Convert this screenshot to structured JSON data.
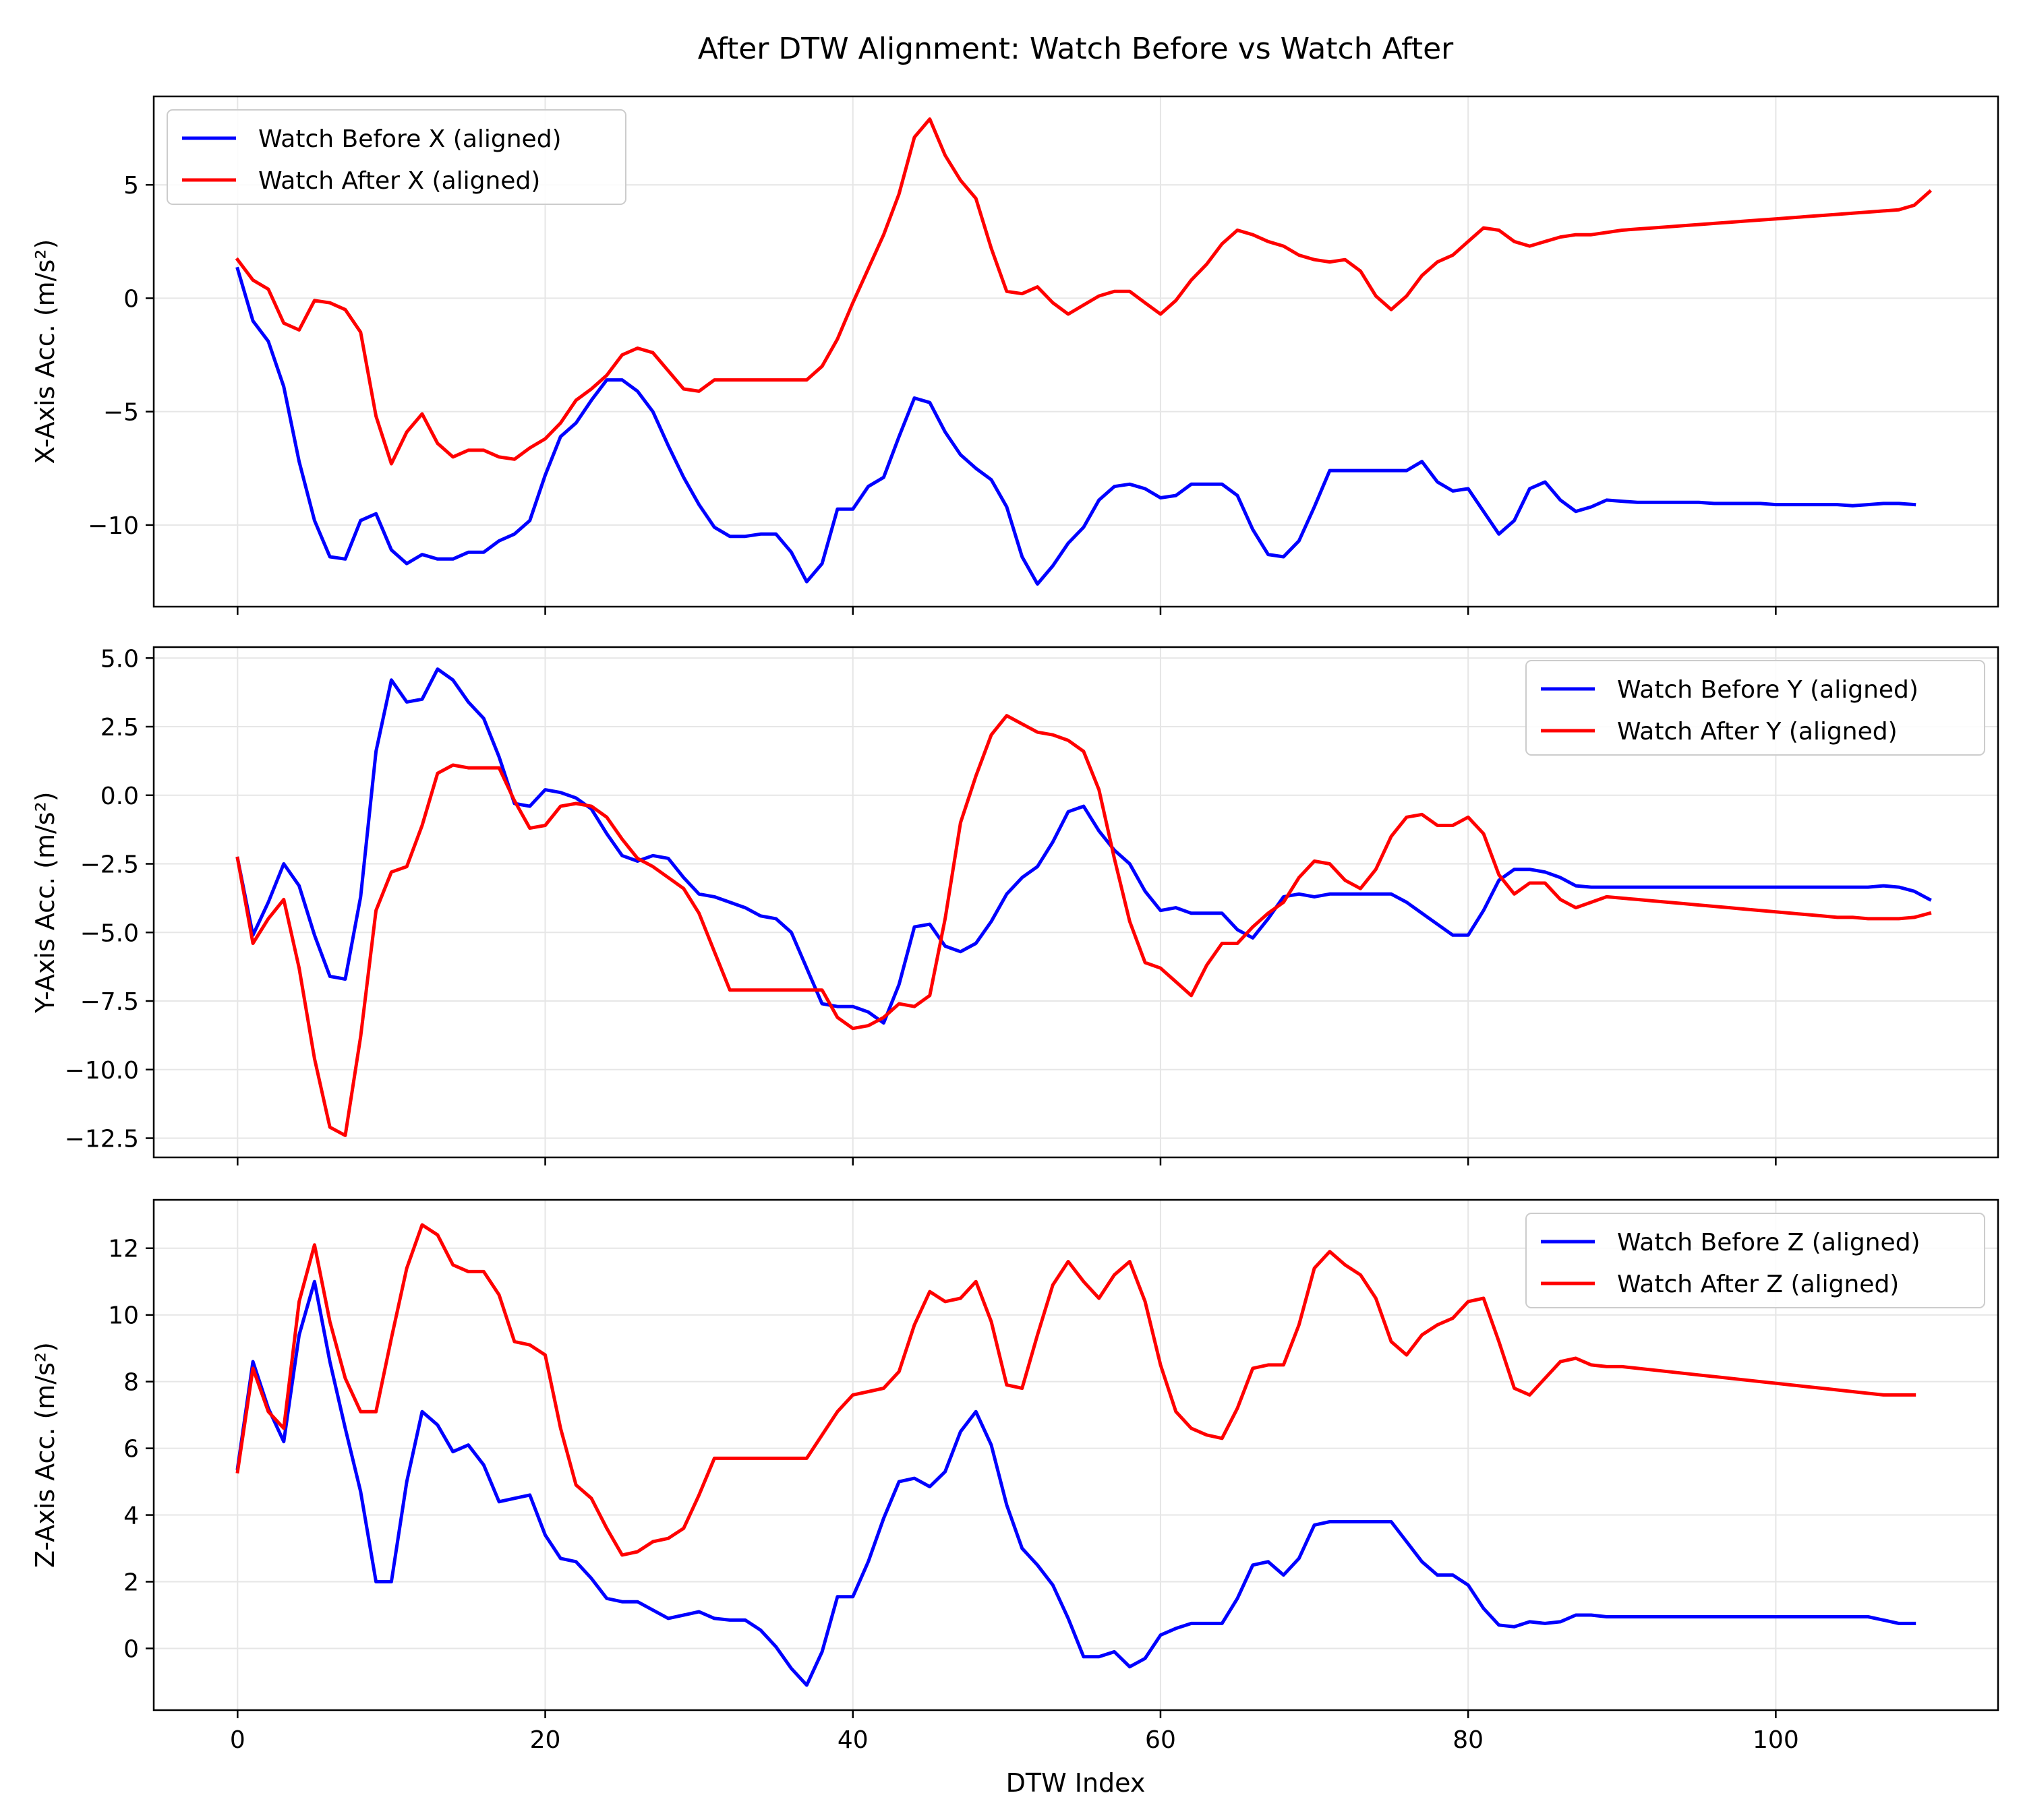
{
  "figure": {
    "title": "After DTW Alignment: Watch Before vs Watch After",
    "xlabel": "DTW Index"
  },
  "chart_data": [
    {
      "type": "line",
      "ylabel": "X-Axis Acc. (m/s²)",
      "ylim": [
        -13.6,
        8.9
      ],
      "yticks": [
        -10,
        -5,
        0,
        5
      ],
      "xlim": [
        -5.45,
        114.45
      ],
      "xticks": [
        0,
        20,
        40,
        60,
        80,
        100
      ],
      "grid": true,
      "legend_position": "upper-left",
      "series": [
        {
          "name": "Watch Before X (aligned)",
          "color": "#0000ff",
          "values": [
            1.3,
            -1.0,
            -1.9,
            -3.9,
            -7.2,
            -9.8,
            -11.4,
            -11.5,
            -9.8,
            -9.5,
            -11.1,
            -11.7,
            -11.3,
            -11.5,
            -11.5,
            -11.2,
            -11.2,
            -10.7,
            -10.4,
            -9.8,
            -7.8,
            -6.1,
            -5.5,
            -4.5,
            -3.6,
            -3.6,
            -4.1,
            -5.0,
            -6.5,
            -7.9,
            -9.1,
            -10.1,
            -10.5,
            -10.5,
            -10.4,
            -10.4,
            -11.2,
            -12.5,
            -11.7,
            -9.3,
            -9.3,
            -8.3,
            -7.9,
            -6.1,
            -4.4,
            -4.6,
            -5.9,
            -6.9,
            -7.5,
            -8.0,
            -9.2,
            -11.4,
            -12.6,
            -11.8,
            -10.8,
            -10.1,
            -8.9,
            -8.3,
            -8.2,
            -8.4,
            -8.8,
            -8.7,
            -8.2,
            -8.2,
            -8.2,
            -8.7,
            -10.2,
            -11.3,
            -11.4,
            -10.7,
            -9.2,
            -7.6,
            -7.6,
            -7.6,
            -7.6,
            -7.6,
            -7.6,
            -7.2,
            -8.1,
            -8.5,
            -8.4,
            -9.4,
            -10.4,
            -9.8,
            -8.4,
            -8.1,
            -8.9,
            -9.4,
            -9.2,
            -8.9,
            -8.95,
            -9.0,
            -9.0,
            -9.0,
            -9.0,
            -9.0,
            -9.05,
            -9.05,
            -9.05,
            -9.05,
            -9.1,
            -9.1,
            -9.1,
            -9.1,
            -9.1,
            -9.15,
            -9.1,
            -9.05,
            -9.05,
            -9.1
          ]
        },
        {
          "name": "Watch After X (aligned)",
          "color": "#ff0000",
          "values": [
            1.7,
            0.8,
            0.4,
            -1.1,
            -1.4,
            -0.1,
            -0.2,
            -0.5,
            -1.5,
            -5.2,
            -7.3,
            -5.9,
            -5.1,
            -6.4,
            -7.0,
            -6.7,
            -6.7,
            -7.0,
            -7.1,
            -6.6,
            -6.2,
            -5.5,
            -4.5,
            -4.0,
            -3.4,
            -2.5,
            -2.2,
            -2.4,
            -3.2,
            -4.0,
            -4.1,
            -3.6,
            -3.6,
            -3.6,
            -3.6,
            -3.6,
            -3.6,
            -3.6,
            -3.0,
            -1.8,
            -0.2,
            1.3,
            2.8,
            4.6,
            7.1,
            7.9,
            6.3,
            5.2,
            4.4,
            2.2,
            0.3,
            0.2,
            0.5,
            -0.2,
            -0.7,
            -0.3,
            0.1,
            0.3,
            0.3,
            -0.2,
            -0.7,
            -0.1,
            0.8,
            1.5,
            2.4,
            3.0,
            2.8,
            2.5,
            2.3,
            1.9,
            1.7,
            1.6,
            1.7,
            1.2,
            0.1,
            -0.5,
            0.1,
            1.0,
            1.6,
            1.9,
            2.5,
            3.1,
            3.0,
            2.5,
            2.3,
            2.5,
            2.7,
            2.8,
            2.8,
            2.9,
            3.0,
            3.05,
            3.1,
            3.15,
            3.2,
            3.25,
            3.3,
            3.35,
            3.4,
            3.45,
            3.5,
            3.55,
            3.6,
            3.65,
            3.7,
            3.75,
            3.8,
            3.85,
            3.9,
            4.1,
            4.7
          ]
        }
      ]
    },
    {
      "type": "line",
      "ylabel": "Y-Axis Acc. (m/s²)",
      "ylim": [
        -13.2,
        5.4
      ],
      "yticks": [
        -12.5,
        -10.0,
        -7.5,
        -5.0,
        -2.5,
        0.0,
        2.5,
        5.0
      ],
      "xlim": [
        -5.45,
        114.45
      ],
      "xticks": [
        0,
        20,
        40,
        60,
        80,
        100
      ],
      "grid": true,
      "legend_position": "upper-right",
      "series": [
        {
          "name": "Watch Before Y (aligned)",
          "color": "#0000ff",
          "values": [
            -2.3,
            -5.1,
            -3.9,
            -2.5,
            -3.3,
            -5.1,
            -6.6,
            -6.7,
            -3.7,
            1.6,
            4.2,
            3.4,
            3.5,
            4.6,
            4.2,
            3.4,
            2.8,
            1.4,
            -0.3,
            -0.4,
            0.2,
            0.1,
            -0.1,
            -0.5,
            -1.4,
            -2.2,
            -2.4,
            -2.2,
            -2.3,
            -3.0,
            -3.6,
            -3.7,
            -3.9,
            -4.1,
            -4.4,
            -4.5,
            -5.0,
            -6.3,
            -7.6,
            -7.7,
            -7.7,
            -7.9,
            -8.3,
            -6.9,
            -4.8,
            -4.7,
            -5.5,
            -5.7,
            -5.4,
            -4.6,
            -3.6,
            -3.0,
            -2.6,
            -1.7,
            -0.6,
            -0.4,
            -1.3,
            -2.0,
            -2.5,
            -3.5,
            -4.2,
            -4.1,
            -4.3,
            -4.3,
            -4.3,
            -4.9,
            -5.2,
            -4.5,
            -3.7,
            -3.6,
            -3.7,
            -3.6,
            -3.6,
            -3.6,
            -3.6,
            -3.6,
            -3.9,
            -4.3,
            -4.7,
            -5.1,
            -5.1,
            -4.2,
            -3.1,
            -2.7,
            -2.7,
            -2.8,
            -3.0,
            -3.3,
            -3.35,
            -3.35,
            -3.35,
            -3.35,
            -3.35,
            -3.35,
            -3.35,
            -3.35,
            -3.35,
            -3.35,
            -3.35,
            -3.35,
            -3.35,
            -3.35,
            -3.35,
            -3.35,
            -3.35,
            -3.35,
            -3.35,
            -3.3,
            -3.35,
            -3.5,
            -3.8
          ]
        },
        {
          "name": "Watch After Y (aligned)",
          "color": "#ff0000",
          "values": [
            -2.3,
            -5.4,
            -4.5,
            -3.8,
            -6.3,
            -9.6,
            -12.1,
            -12.4,
            -8.8,
            -4.2,
            -2.8,
            -2.6,
            -1.1,
            0.8,
            1.1,
            1.0,
            1.0,
            1.0,
            -0.2,
            -1.2,
            -1.1,
            -0.4,
            -0.3,
            -0.4,
            -0.8,
            -1.6,
            -2.3,
            -2.6,
            -3.0,
            -3.4,
            -4.3,
            -5.7,
            -7.1,
            -7.1,
            -7.1,
            -7.1,
            -7.1,
            -7.1,
            -7.1,
            -8.1,
            -8.5,
            -8.4,
            -8.1,
            -7.6,
            -7.7,
            -7.3,
            -4.5,
            -1.0,
            0.7,
            2.2,
            2.9,
            2.6,
            2.3,
            2.2,
            2.0,
            1.6,
            0.2,
            -2.3,
            -4.6,
            -6.1,
            -6.3,
            -6.8,
            -7.3,
            -6.2,
            -5.4,
            -5.4,
            -4.8,
            -4.3,
            -3.9,
            -3.0,
            -2.4,
            -2.5,
            -3.1,
            -3.4,
            -2.7,
            -1.5,
            -0.8,
            -0.7,
            -1.1,
            -1.1,
            -0.8,
            -1.4,
            -2.9,
            -3.6,
            -3.2,
            -3.2,
            -3.8,
            -4.1,
            -3.9,
            -3.7,
            -3.75,
            -3.8,
            -3.85,
            -3.9,
            -3.95,
            -4.0,
            -4.05,
            -4.1,
            -4.15,
            -4.2,
            -4.25,
            -4.3,
            -4.35,
            -4.4,
            -4.45,
            -4.45,
            -4.5,
            -4.5,
            -4.5,
            -4.45,
            -4.3
          ]
        }
      ]
    },
    {
      "type": "line",
      "ylabel": "Z-Axis Acc. (m/s²)",
      "ylim": [
        -1.85,
        13.45
      ],
      "yticks": [
        0,
        2,
        4,
        6,
        8,
        10,
        12
      ],
      "xlim": [
        -5.45,
        114.45
      ],
      "xticks": [
        0,
        20,
        40,
        60,
        80,
        100
      ],
      "grid": true,
      "legend_position": "upper-right",
      "series": [
        {
          "name": "Watch Before Z (aligned)",
          "color": "#0000ff",
          "values": [
            5.4,
            8.6,
            7.2,
            6.2,
            9.4,
            11.0,
            8.6,
            6.6,
            4.7,
            2.0,
            2.0,
            5.0,
            7.1,
            6.7,
            5.9,
            6.1,
            5.5,
            4.4,
            4.5,
            4.6,
            3.4,
            2.7,
            2.6,
            2.1,
            1.5,
            1.4,
            1.4,
            1.15,
            0.9,
            1.0,
            1.1,
            0.9,
            0.85,
            0.85,
            0.55,
            0.05,
            -0.6,
            -1.1,
            -0.1,
            1.55,
            1.55,
            2.6,
            3.9,
            5.0,
            5.1,
            4.85,
            5.3,
            6.5,
            7.1,
            6.1,
            4.3,
            3.0,
            2.5,
            1.9,
            0.9,
            -0.25,
            -0.25,
            -0.1,
            -0.55,
            -0.3,
            0.4,
            0.6,
            0.75,
            0.75,
            0.75,
            1.5,
            2.5,
            2.6,
            2.2,
            2.7,
            3.7,
            3.8,
            3.8,
            3.8,
            3.8,
            3.8,
            3.2,
            2.6,
            2.2,
            2.2,
            1.9,
            1.2,
            0.7,
            0.65,
            0.8,
            0.75,
            0.8,
            1.0,
            1.0,
            0.95,
            0.95,
            0.95,
            0.95,
            0.95,
            0.95,
            0.95,
            0.95,
            0.95,
            0.95,
            0.95,
            0.95,
            0.95,
            0.95,
            0.95,
            0.95,
            0.95,
            0.95,
            0.85,
            0.75,
            0.75
          ]
        },
        {
          "name": "Watch After Z (aligned)",
          "color": "#ff0000",
          "values": [
            5.3,
            8.4,
            7.1,
            6.6,
            10.4,
            12.1,
            9.8,
            8.1,
            7.1,
            7.1,
            9.3,
            11.4,
            12.7,
            12.4,
            11.5,
            11.3,
            11.3,
            10.6,
            9.2,
            9.1,
            8.8,
            6.6,
            4.9,
            4.5,
            3.6,
            2.8,
            2.9,
            3.2,
            3.3,
            3.6,
            4.6,
            5.7,
            5.7,
            5.7,
            5.7,
            5.7,
            5.7,
            5.7,
            6.4,
            7.1,
            7.6,
            7.7,
            7.8,
            8.3,
            9.7,
            10.7,
            10.4,
            10.5,
            11.0,
            9.8,
            7.9,
            7.8,
            9.4,
            10.9,
            11.6,
            11.0,
            10.5,
            11.2,
            11.6,
            10.4,
            8.5,
            7.1,
            6.6,
            6.4,
            6.3,
            7.2,
            8.4,
            8.5,
            8.5,
            9.7,
            11.4,
            11.9,
            11.5,
            11.2,
            10.5,
            9.2,
            8.8,
            9.4,
            9.7,
            9.9,
            10.4,
            10.5,
            9.2,
            7.8,
            7.6,
            8.1,
            8.6,
            8.7,
            8.5,
            8.45,
            8.45,
            8.4,
            8.35,
            8.3,
            8.25,
            8.2,
            8.15,
            8.1,
            8.05,
            8.0,
            7.95,
            7.9,
            7.85,
            7.8,
            7.75,
            7.7,
            7.65,
            7.6,
            7.6,
            7.6
          ]
        }
      ]
    }
  ]
}
